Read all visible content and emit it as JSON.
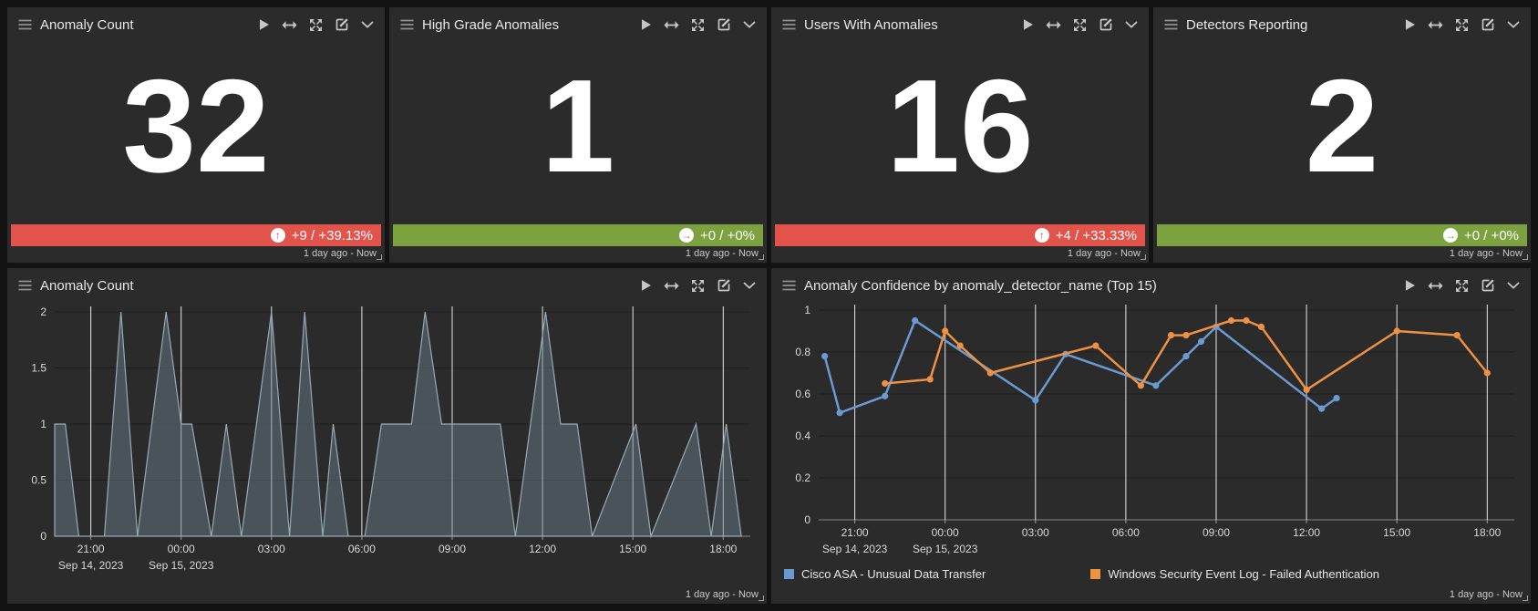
{
  "stat_panels": [
    {
      "title": "Anomaly Count",
      "value": "32",
      "trend_text": "+9 / +39.13%",
      "trend_direction": "up",
      "trend_color": "#e2544b",
      "timerange": "1 day ago - Now"
    },
    {
      "title": "High Grade Anomalies",
      "value": "1",
      "trend_text": "+0 / +0%",
      "trend_direction": "flat",
      "trend_color": "#7ba23f",
      "timerange": "1 day ago - Now"
    },
    {
      "title": "Users With Anomalies",
      "value": "16",
      "trend_text": "+4 / +33.33%",
      "trend_direction": "up",
      "trend_color": "#e2544b",
      "timerange": "1 day ago - Now"
    },
    {
      "title": "Detectors Reporting",
      "value": "2",
      "trend_text": "+0 / +0%",
      "trend_direction": "flat",
      "trend_color": "#7ba23f",
      "timerange": "1 day ago - Now"
    }
  ],
  "chart_panels": [
    {
      "title": "Anomaly Count",
      "timerange": "1 day ago - Now"
    },
    {
      "title": "Anomaly Confidence by anomaly_detector_name (Top 15)",
      "timerange": "1 day ago - Now"
    }
  ],
  "icons": {
    "drag_handle": "hamburger-lines",
    "play": "play-triangle",
    "swap": "left-right-arrows",
    "expand": "expand-corners",
    "edit": "edit-pencil-square",
    "collapse": "chevron-down",
    "trend_up_glyph": "↑",
    "trend_flat_glyph": "→"
  },
  "colors": {
    "page_bg": "#131313",
    "panel_bg": "#2b2b2b",
    "trend_red": "#e2544b",
    "trend_green": "#7ba23f",
    "series_blue": "#6a9ad4",
    "series_orange": "#ef9143",
    "area_fill": "rgba(108,128,141,0.48)",
    "area_stroke": "#96aab5",
    "vertical_gridline": "#ffffff",
    "horizontal_gridline": "#1d1d1d"
  },
  "chart_data": [
    {
      "type": "area",
      "title": "Anomaly Count",
      "x_unit": "hours after 20:00 Sep 14, 2023",
      "xlim": [
        -0.2,
        22.9
      ],
      "ylim": [
        0,
        2
      ],
      "y_ticks": [
        0,
        0.5,
        1,
        1.5,
        2
      ],
      "x_ticks": [
        {
          "t": 1,
          "label": "21:00",
          "sublabel": "Sep 14, 2023"
        },
        {
          "t": 4,
          "label": "00:00",
          "sublabel": "Sep 15, 2023"
        },
        {
          "t": 7,
          "label": "03:00"
        },
        {
          "t": 10,
          "label": "06:00"
        },
        {
          "t": 13,
          "label": "09:00"
        },
        {
          "t": 16,
          "label": "12:00"
        },
        {
          "t": 19,
          "label": "15:00"
        },
        {
          "t": 22,
          "label": "18:00"
        }
      ],
      "points": [
        [
          -0.2,
          1
        ],
        [
          0.15,
          1
        ],
        [
          0.6,
          0
        ],
        [
          1.45,
          0
        ],
        [
          2,
          2
        ],
        [
          2.55,
          0
        ],
        [
          3.5,
          2
        ],
        [
          4,
          1
        ],
        [
          4.35,
          1
        ],
        [
          5,
          0
        ],
        [
          5.5,
          1
        ],
        [
          6,
          0
        ],
        [
          7,
          2
        ],
        [
          7.6,
          0
        ],
        [
          8.1,
          2
        ],
        [
          8.7,
          0
        ],
        [
          9.05,
          1
        ],
        [
          9.55,
          0
        ],
        [
          10.1,
          0
        ],
        [
          10.65,
          1
        ],
        [
          11.65,
          1
        ],
        [
          12.1,
          2
        ],
        [
          12.65,
          1
        ],
        [
          14.6,
          1
        ],
        [
          15.1,
          0
        ],
        [
          16.1,
          2
        ],
        [
          16.6,
          1
        ],
        [
          17.15,
          1
        ],
        [
          17.65,
          0
        ],
        [
          19.1,
          1
        ],
        [
          19.6,
          0
        ],
        [
          21.1,
          1
        ],
        [
          21.6,
          0
        ],
        [
          22.1,
          1
        ],
        [
          22.6,
          0
        ]
      ],
      "timerange": "1 day ago - Now"
    },
    {
      "type": "line",
      "title": "Anomaly Confidence by anomaly_detector_name (Top 15)",
      "x_unit": "hours after 20:00 Sep 14, 2023",
      "xlim": [
        -0.2,
        22.9
      ],
      "ylim": [
        0,
        1
      ],
      "y_ticks": [
        0,
        0.2,
        0.4,
        0.6,
        0.8,
        1
      ],
      "x_ticks": [
        {
          "t": 1,
          "label": "21:00",
          "sublabel": "Sep 14, 2023"
        },
        {
          "t": 4,
          "label": "00:00",
          "sublabel": "Sep 15, 2023"
        },
        {
          "t": 7,
          "label": "03:00"
        },
        {
          "t": 10,
          "label": "06:00"
        },
        {
          "t": 13,
          "label": "09:00"
        },
        {
          "t": 16,
          "label": "12:00"
        },
        {
          "t": 19,
          "label": "15:00"
        },
        {
          "t": 22,
          "label": "18:00"
        }
      ],
      "series": [
        {
          "name": "Cisco ASA - Unusual Data Transfer",
          "color": "#6a9ad4",
          "points": [
            [
              0,
              0.78
            ],
            [
              0.5,
              0.51
            ],
            [
              2,
              0.59
            ],
            [
              3,
              0.95
            ],
            [
              7,
              0.57
            ],
            [
              8,
              0.79
            ],
            [
              11,
              0.64
            ],
            [
              12,
              0.78
            ],
            [
              12.5,
              0.85
            ],
            [
              13,
              0.92
            ],
            [
              16.5,
              0.53
            ],
            [
              17,
              0.58
            ]
          ]
        },
        {
          "name": "Windows Security Event Log - Failed Authentication",
          "color": "#ef9143",
          "points": [
            [
              2,
              0.65
            ],
            [
              3.5,
              0.67
            ],
            [
              4,
              0.9
            ],
            [
              4.5,
              0.83
            ],
            [
              5.5,
              0.7
            ],
            [
              9,
              0.83
            ],
            [
              10.5,
              0.64
            ],
            [
              11.5,
              0.88
            ],
            [
              12,
              0.88
            ],
            [
              13.5,
              0.95
            ],
            [
              14,
              0.95
            ],
            [
              14.5,
              0.92
            ],
            [
              16,
              0.62
            ],
            [
              19,
              0.9
            ],
            [
              21,
              0.88
            ],
            [
              22,
              0.7
            ]
          ]
        }
      ],
      "legend_position": "bottom-left",
      "timerange": "1 day ago - Now"
    }
  ]
}
